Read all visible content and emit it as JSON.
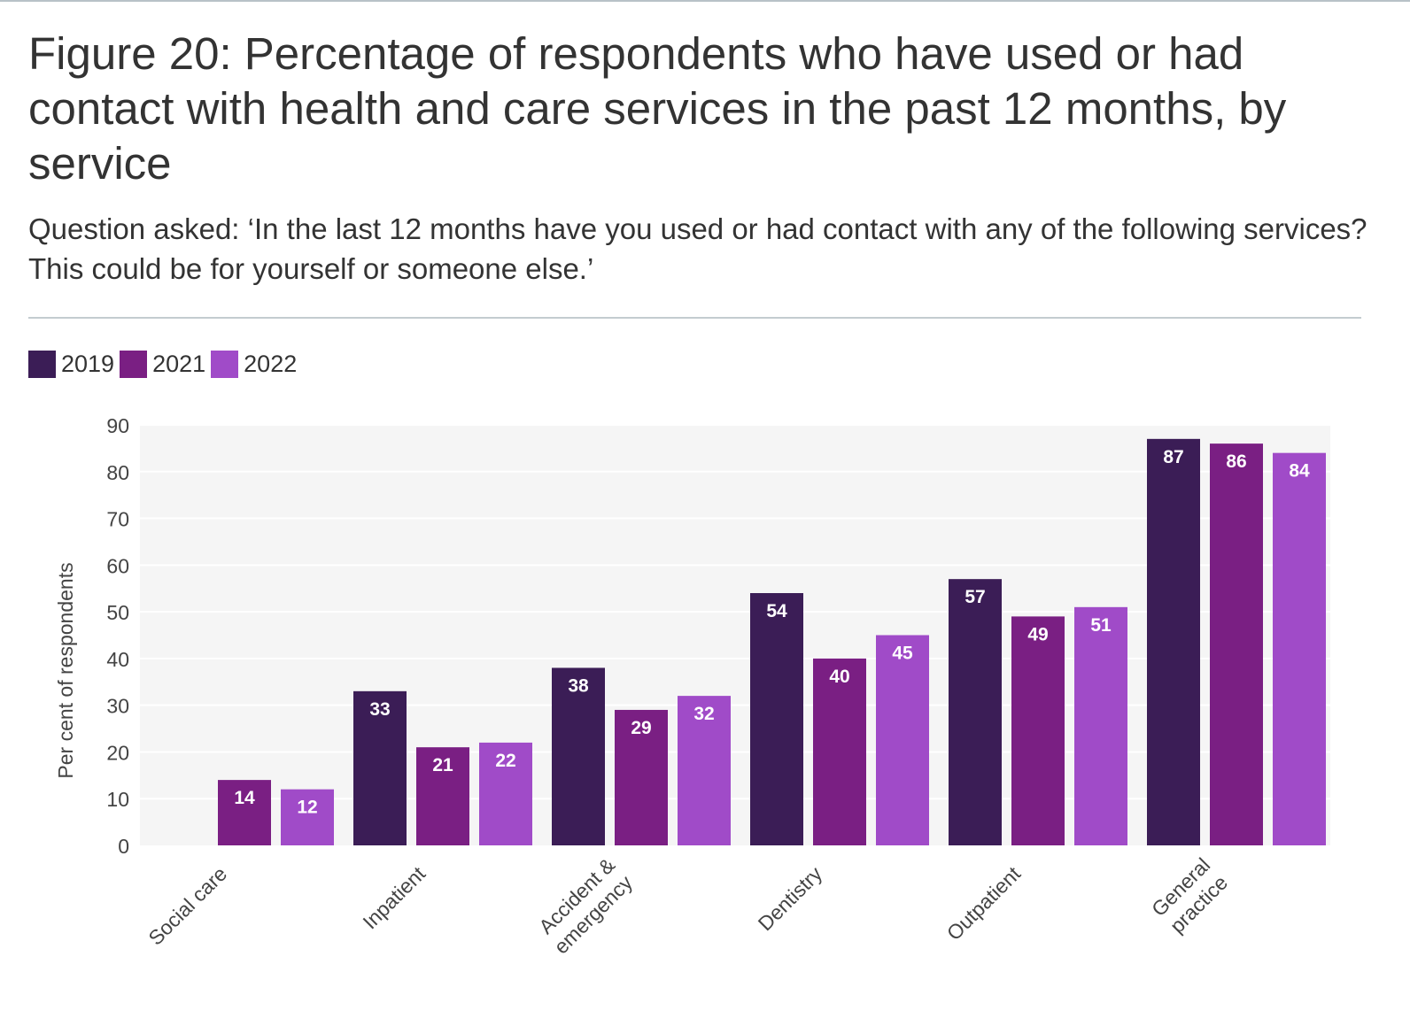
{
  "figure": {
    "title": "Figure 20: Percentage of respondents who have used or had contact with health and care services in the past 12 months, by service",
    "subtitle": "Question asked: ‘In the last 12 months have you used or had contact with any of the following services? This could be for yourself or someone else.’"
  },
  "legend": {
    "items": [
      {
        "label": "2019",
        "color": "#3b1d56"
      },
      {
        "label": "2021",
        "color": "#7a1f83"
      },
      {
        "label": "2022",
        "color": "#a04bc8"
      }
    ]
  },
  "chart_data": {
    "type": "bar",
    "title": "Figure 20: Percentage of respondents who have used or had contact with health and care services in the past 12 months, by service",
    "xlabel": "",
    "ylabel": "Per cent of respondents",
    "ylim": [
      0,
      90
    ],
    "yticks": [
      0,
      10,
      20,
      30,
      40,
      50,
      60,
      70,
      80,
      90
    ],
    "grid": true,
    "legend_position": "top-left",
    "categories": [
      [
        "Social care"
      ],
      [
        "Inpatient"
      ],
      [
        "Accident &",
        "emergency"
      ],
      [
        "Dentistry"
      ],
      [
        "Outpatient"
      ],
      [
        "General",
        "practice"
      ]
    ],
    "series": [
      {
        "name": "2019",
        "color": "#3b1d56",
        "values": [
          null,
          33,
          38,
          54,
          57,
          87
        ]
      },
      {
        "name": "2021",
        "color": "#7a1f83",
        "values": [
          14,
          21,
          29,
          40,
          49,
          86
        ]
      },
      {
        "name": "2022",
        "color": "#a04bc8",
        "values": [
          12,
          22,
          32,
          45,
          51,
          84
        ]
      }
    ]
  }
}
